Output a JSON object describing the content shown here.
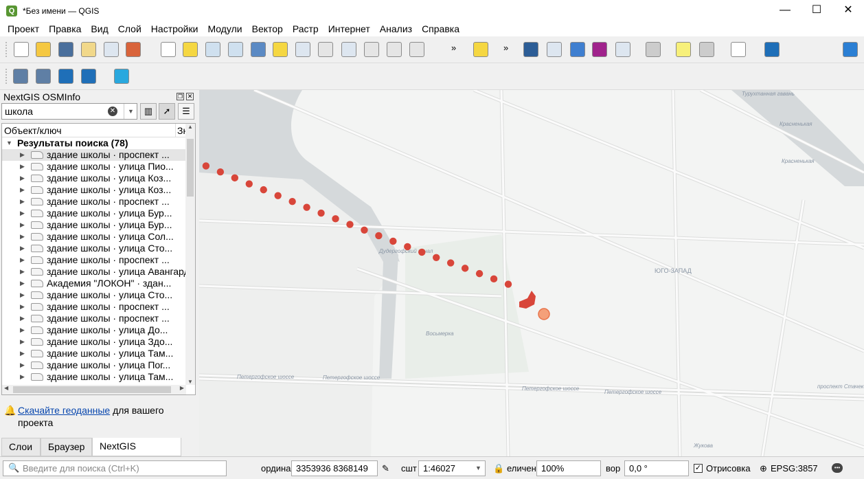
{
  "window": {
    "title": "*Без имени — QGIS",
    "minimize": "—",
    "maximize": "☐",
    "close": "✕"
  },
  "menu": [
    "Проект",
    "Правка",
    "Вид",
    "Слой",
    "Настройки",
    "Модули",
    "Вектор",
    "Растр",
    "Интернет",
    "Анализ",
    "Справка"
  ],
  "toolbar_icons": [
    {
      "name": "new-project-icon",
      "color": "#ffffff"
    },
    {
      "name": "open-project-icon",
      "color": "#f5c842"
    },
    {
      "name": "save-project-icon",
      "color": "#4a6f9c"
    },
    {
      "name": "new-print-layout-icon",
      "color": "#f1d88a"
    },
    {
      "name": "layout-manager-icon",
      "color": "#dde6f0"
    },
    {
      "name": "style-manager-icon",
      "color": "#d9643b"
    },
    {
      "name": "pan-icon",
      "color": "#ffffff"
    },
    {
      "name": "pan-to-selection-icon",
      "color": "#f5d742"
    },
    {
      "name": "zoom-in-icon",
      "color": "#cfe0ef"
    },
    {
      "name": "zoom-out-icon",
      "color": "#cfe0ef"
    },
    {
      "name": "zoom-full-icon",
      "color": "#5b8ac4"
    },
    {
      "name": "zoom-to-selection-icon",
      "color": "#f5d742"
    },
    {
      "name": "zoom-to-layer-icon",
      "color": "#dde6f0"
    },
    {
      "name": "zoom-native-icon",
      "color": "#e5e5e5"
    },
    {
      "name": "zoom-last-icon",
      "color": "#dde6f0"
    },
    {
      "name": "zoom-next-icon",
      "color": "#e5e5e5"
    },
    {
      "name": "new-bookmark-icon",
      "color": "#e5e5e5"
    },
    {
      "name": "show-bookmarks-icon",
      "color": "#e5e5e5"
    }
  ],
  "toolbar_right_icons": [
    {
      "name": "select-features-icon",
      "color": "#f5d742"
    },
    {
      "name": "identify-icon",
      "color": "#2c5d96"
    },
    {
      "name": "attribute-table-icon",
      "color": "#dde6f0"
    },
    {
      "name": "processing-toolbox-icon",
      "color": "#3f7fd0"
    },
    {
      "name": "statistics-sum-icon",
      "color": "#a0238c"
    },
    {
      "name": "field-calculator-icon",
      "color": "#dde6f0"
    },
    {
      "name": "measure-icon",
      "color": "#cccccc"
    },
    {
      "name": "map-tips-icon",
      "color": "#f7f07a"
    },
    {
      "name": "georeferencer-icon",
      "color": "#cccccc"
    },
    {
      "name": "help-icon",
      "color": "#ffffff"
    },
    {
      "name": "nextgis-icon",
      "color": "#1f6fb8"
    },
    {
      "name": "user-profile-icon",
      "color": "#2b7fd4"
    }
  ],
  "toolbar2_icons": [
    {
      "name": "add-wms-layer-icon",
      "color": "#5f7fa5"
    },
    {
      "name": "search-wms-icon",
      "color": "#5f7fa5"
    },
    {
      "name": "osminfo-search-icon",
      "color": "#1f6fb8"
    },
    {
      "name": "osminfo-identify-icon",
      "color": "#1f6fb8"
    },
    {
      "name": "quickmapservices-icon",
      "color": "#29a8de"
    }
  ],
  "panel": {
    "title": "NextGIS OSMInfo",
    "search_value": "школа",
    "columns": [
      "Объект/ключ",
      "Зн"
    ],
    "root": "Результаты поиска (78)",
    "items": [
      "здание школы · проспект ...",
      "здание школы · улица Пио...",
      "здание школы · улица Коз...",
      "здание школы · улица Коз...",
      "здание школы · проспект ...",
      "здание школы · улица Бур...",
      "здание школы · улица Бур...",
      "здание школы · улица Сол...",
      "здание школы · улица Сто...",
      "здание школы · проспект ...",
      "здание школы · улица Авангардн...",
      "Академия \"ЛОКОН\" · здан...",
      "здание школы · улица Сто...",
      "здание школы · проспект ...",
      "здание школы · проспект ...",
      "здание школы · улица До...",
      "здание школы · улица Здо...",
      "здание школы · улица Там...",
      "здание школы · улица Пог...",
      "здание школы · улица Там..."
    ],
    "note_link": "Скачайте геоданные",
    "note_text": " для вашего проекта",
    "tabs": [
      "Слои",
      "Браузер",
      "NextGIS OSMInfo"
    ],
    "active_tab": "NextGIS OSMInfo"
  },
  "map": {
    "labels": [
      "Турухтанная гавань",
      "Красненькая",
      "Красненькая",
      "Дудергофский канал",
      "ЮГО-ЗАПАД",
      "Восьмерка",
      "Петергофское шоссе",
      "Петергофское шоссе",
      "Петергофское шоссе",
      "Петергофское шоссе",
      "проспект Стачек",
      "Жукова"
    ],
    "point_color": "#d8463a",
    "highlight_color": "#f4a07a",
    "water_color": "#d5d9db"
  },
  "status": {
    "search_placeholder": "Введите для поиска (Ctrl+K)",
    "coord_label": "ордина",
    "coord_value": "3353936  8368149",
    "scale_label": "сшт",
    "scale_value": "1:46027",
    "magnifier_label": "еличен",
    "magnifier_value": "100%",
    "rotation_label": "вор",
    "rotation_value": "0,0 °",
    "render_label": "Отрисовка",
    "render_checked": true,
    "crs": "EPSG:3857"
  }
}
